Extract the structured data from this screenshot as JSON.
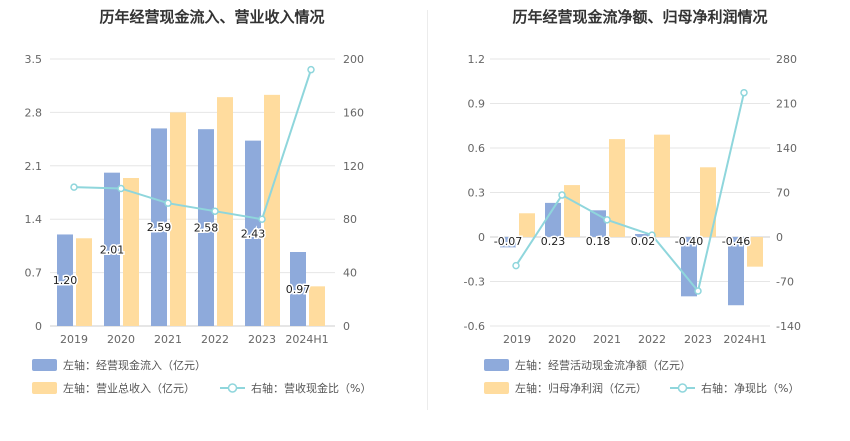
{
  "chart_data": [
    {
      "type": "bar",
      "title": "历年经营现金流入、营业收入情况",
      "categories": [
        "2019",
        "2020",
        "2021",
        "2022",
        "2023",
        "2024H1"
      ],
      "left_axis": {
        "ylim": [
          0,
          3.5
        ],
        "ticks": [
          "0",
          "0.7",
          "1.4",
          "2.1",
          "2.8",
          "3.5"
        ]
      },
      "right_axis": {
        "ylim": [
          0,
          200
        ],
        "ticks": [
          "0",
          "40",
          "80",
          "120",
          "160",
          "200"
        ]
      },
      "series": [
        {
          "name": "左轴：经营现金流入（亿元）",
          "axis": "left",
          "kind": "bar",
          "color": "#8eaadb",
          "values": [
            1.2,
            2.01,
            2.59,
            2.58,
            2.43,
            0.97
          ],
          "labels": [
            "1.20",
            "2.01",
            "2.59",
            "2.58",
            "2.43",
            "0.97"
          ]
        },
        {
          "name": "左轴：营业总收入（亿元）",
          "axis": "left",
          "kind": "bar",
          "color": "#ffdc9e",
          "values": [
            1.15,
            1.94,
            2.8,
            3.0,
            3.03,
            0.52
          ]
        },
        {
          "name": "右轴：营收现金比（%）",
          "axis": "right",
          "kind": "line",
          "color": "#8fd6dc",
          "values": [
            104,
            103,
            92,
            86,
            80,
            192
          ]
        }
      ]
    },
    {
      "type": "bar",
      "title": "历年经营现金流净额、归母净利润情况",
      "categories": [
        "2019",
        "2020",
        "2021",
        "2022",
        "2023",
        "2024H1"
      ],
      "left_axis": {
        "ylim": [
          -0.6,
          1.2
        ],
        "ticks": [
          "-0.6",
          "-0.3",
          "0",
          "0.3",
          "0.6",
          "0.9",
          "1.2"
        ]
      },
      "right_axis": {
        "ylim": [
          -140,
          280
        ],
        "ticks": [
          "-140",
          "-70",
          "0",
          "70",
          "140",
          "210",
          "280"
        ]
      },
      "series": [
        {
          "name": "左轴：经营活动现金流净额（亿元）",
          "axis": "left",
          "kind": "bar",
          "color": "#8eaadb",
          "values": [
            -0.07,
            0.23,
            0.18,
            0.02,
            -0.4,
            -0.46
          ],
          "labels": [
            "-0.07",
            "0.23",
            "0.18",
            "0.02",
            "-0.40",
            "-0.46"
          ]
        },
        {
          "name": "左轴：归母净利润（亿元）",
          "axis": "left",
          "kind": "bar",
          "color": "#ffdc9e",
          "values": [
            0.16,
            0.35,
            0.66,
            0.69,
            0.47,
            -0.2
          ]
        },
        {
          "name": "右轴：净现比（%）",
          "axis": "right",
          "kind": "line",
          "color": "#8fd6dc",
          "values": [
            -45,
            66,
            27,
            3,
            -85,
            227
          ]
        }
      ]
    }
  ]
}
